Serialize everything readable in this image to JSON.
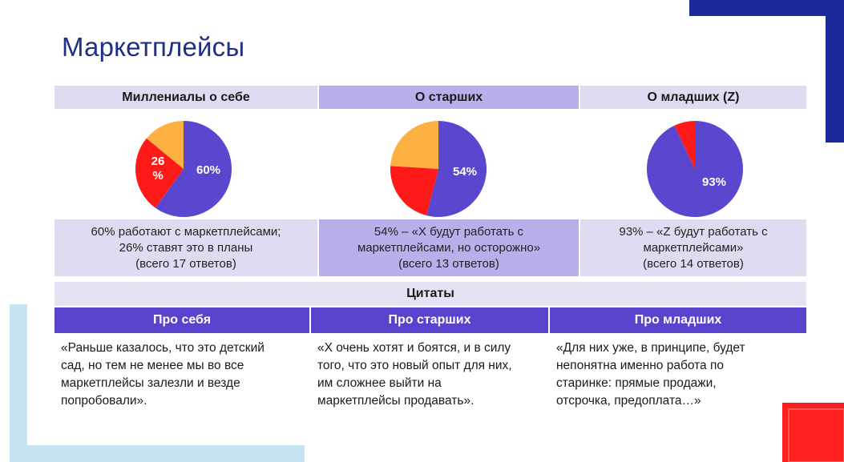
{
  "slide": {
    "title": "Маркетплейсы",
    "colors": {
      "title": "#1f2f86",
      "header_bg_light": "#dedcf1",
      "header_bg_mid": "#b7b0ea",
      "pie_blue": "#5a47cf",
      "pie_red": "#ff1a1a",
      "pie_orange": "#fbb040",
      "quote_header_bg": "#5844cc",
      "corner_navy": "#1a2a9a",
      "corner_red": "#ff1f1f",
      "corner_lightblue": "#c5e3f0"
    }
  },
  "columns": [
    {
      "header": "Миллениалы о себе",
      "caption_lines": [
        "60% работают с маркетплейсами;",
        "26% ставят это в планы",
        "(всего 17 ответов)"
      ],
      "chart_data": {
        "type": "pie",
        "slices": [
          {
            "label": "60%",
            "value": 60,
            "color": "#5a47cf"
          },
          {
            "label": "26\n%",
            "value": 26,
            "color": "#ff1a1a"
          },
          {
            "label": "",
            "value": 14,
            "color": "#fbb040"
          }
        ]
      }
    },
    {
      "header": "О старших",
      "caption_lines": [
        "54% – «X будут работать с",
        "маркетплейсами, но  осторожно»",
        "(всего 13 ответов)"
      ],
      "chart_data": {
        "type": "pie",
        "slices": [
          {
            "label": "54%",
            "value": 54,
            "color": "#5a47cf"
          },
          {
            "label": "",
            "value": 22,
            "color": "#ff1a1a"
          },
          {
            "label": "",
            "value": 24,
            "color": "#fbb040"
          }
        ]
      }
    },
    {
      "header": "О младших (Z)",
      "caption_lines": [
        "93% – «Z будут работать с",
        "маркетплейсами»",
        "(всего 14 ответов)"
      ],
      "chart_data": {
        "type": "pie",
        "slices": [
          {
            "label": "93%",
            "value": 93,
            "color": "#5a47cf"
          },
          {
            "label": "",
            "value": 7,
            "color": "#ff1a1a"
          }
        ]
      }
    }
  ],
  "quotes": {
    "title": "Цитаты",
    "columns": [
      {
        "header": "Про себя",
        "lines": [
          "«Раньше казалось, что это детский",
          "сад, но тем не менее мы во все",
          "маркетплейсы залезли и везде",
          "попробовали»."
        ]
      },
      {
        "header": "Про старших",
        "lines": [
          "«X очень хотят и боятся, и в силу",
          "того, что это новый опыт для них,",
          "им сложнее выйти на",
          "маркетплейсы продавать»."
        ]
      },
      {
        "header": "Про младших",
        "lines": [
          "«Для них уже, в принципе, будет",
          "непонятна именно работа по",
          "старинке: прямые продажи,",
          "отсрочка, предоплата…»"
        ]
      }
    ]
  }
}
